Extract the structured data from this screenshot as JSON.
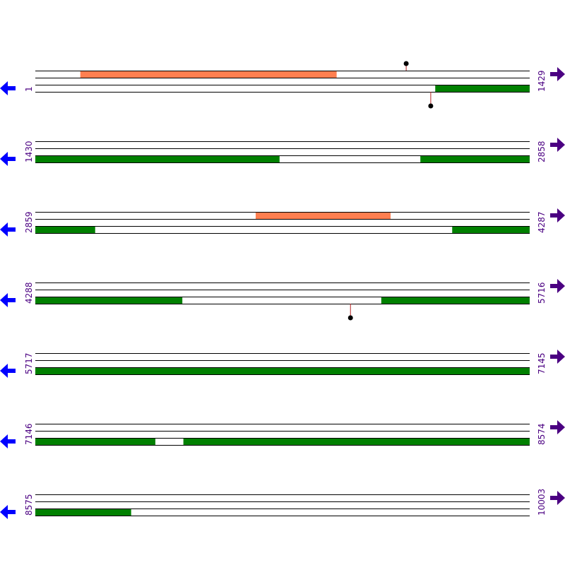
{
  "colors": {
    "line": "#000000",
    "forward_feature": "#FF7F50",
    "reverse_feature": "#008000",
    "stalk": "#B22222",
    "marker": "#000000",
    "left_arrow": "#0000FF",
    "right_arrow": "#4B0082",
    "label": "#4B0082"
  },
  "icons": {
    "left": "left-arrow-icon",
    "right": "right-arrow-icon"
  },
  "rows": [
    {
      "start": "1",
      "end": "1429",
      "from": 1,
      "to": 1429,
      "forward": [
        {
          "from": 131,
          "to": 871
        }
      ],
      "reverse": [
        {
          "from": 1157,
          "to": 1429
        }
      ],
      "markers": [
        {
          "pos": 1073,
          "side": "top"
        },
        {
          "pos": 1144,
          "side": "bottom"
        }
      ]
    },
    {
      "start": "1430",
      "end": "2858",
      "from": 1430,
      "to": 2858,
      "forward": [],
      "reverse": [
        {
          "from": 1430,
          "to": 2135
        },
        {
          "from": 2543,
          "to": 2858
        }
      ],
      "markers": []
    },
    {
      "start": "2859",
      "end": "4287",
      "from": 2859,
      "to": 4287,
      "forward": [
        {
          "from": 3496,
          "to": 3885
        }
      ],
      "reverse": [
        {
          "from": 2859,
          "to": 3031
        },
        {
          "from": 4064,
          "to": 4287
        }
      ],
      "markers": []
    },
    {
      "start": "4288",
      "end": "5716",
      "from": 4288,
      "to": 5716,
      "forward": [],
      "reverse": [
        {
          "from": 4288,
          "to": 4712
        },
        {
          "from": 5288,
          "to": 5716
        }
      ],
      "markers": [
        {
          "pos": 5199,
          "side": "bottom"
        }
      ]
    },
    {
      "start": "5717",
      "end": "7145",
      "from": 5717,
      "to": 7145,
      "forward": [],
      "reverse": [
        {
          "from": 5717,
          "to": 7145
        }
      ],
      "markers": []
    },
    {
      "start": "7146",
      "end": "8574",
      "from": 7146,
      "to": 8574,
      "forward": [],
      "reverse": [
        {
          "from": 7146,
          "to": 7492
        },
        {
          "from": 7574,
          "to": 8574
        }
      ],
      "markers": []
    },
    {
      "start": "8575",
      "end": "10003",
      "from": 8575,
      "to": 10003,
      "forward": [],
      "reverse": [
        {
          "from": 8575,
          "to": 8851
        }
      ],
      "markers": []
    }
  ]
}
